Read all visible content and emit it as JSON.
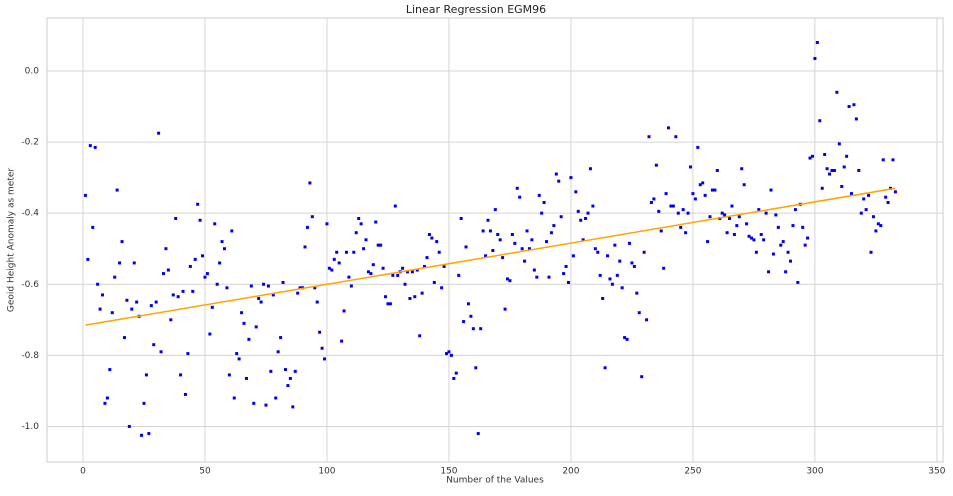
{
  "chart_data": {
    "type": "scatter",
    "title": "Linear Regression EGM96",
    "x_label": "Number of the Values",
    "y_label": "Geoid Height Anomaly as meter",
    "xlim": [
      -14.75,
      352.5
    ],
    "ylim": [
      -1.1,
      0.149
    ],
    "xticks": [
      0,
      50,
      100,
      150,
      200,
      250,
      300,
      350
    ],
    "yticks": [
      {
        "value": -1.0,
        "label": "-1.0"
      },
      -0.8,
      -0.6,
      -0.4,
      -0.2,
      {
        "value": 0.0,
        "label": "0.0"
      }
    ],
    "grid": true,
    "series": [
      {
        "type": "scatter",
        "color": "#0000ee",
        "x": [
          1,
          2,
          3,
          4,
          5,
          6,
          7,
          8,
          9,
          10,
          11,
          12,
          13,
          14,
          15,
          16,
          17,
          18,
          19,
          20,
          21,
          22,
          23,
          24,
          25,
          26,
          27,
          28,
          29,
          30,
          31,
          32,
          33,
          34,
          35,
          36,
          37,
          38,
          39,
          40,
          41,
          42,
          43,
          44,
          45,
          46,
          47,
          48,
          49,
          50,
          51,
          52,
          53,
          54,
          55,
          56,
          57,
          58,
          59,
          60,
          61,
          62,
          63,
          64,
          65,
          66,
          67,
          68,
          69,
          70,
          71,
          72,
          73,
          74,
          75,
          76,
          77,
          78,
          79,
          80,
          81,
          82,
          83,
          84,
          85,
          86,
          87,
          88,
          89,
          90,
          91,
          92,
          93,
          94,
          95,
          96,
          97,
          98,
          99,
          100,
          101,
          102,
          103,
          104,
          105,
          106,
          107,
          108,
          109,
          110,
          111,
          112,
          113,
          114,
          115,
          116,
          117,
          118,
          119,
          120,
          121,
          122,
          123,
          124,
          125,
          126,
          127,
          128,
          129,
          130,
          131,
          132,
          133,
          134,
          135,
          136,
          137,
          138,
          139,
          140,
          141,
          142,
          143,
          144,
          145,
          146,
          147,
          148,
          149,
          150,
          151,
          152,
          153,
          154,
          155,
          156,
          157,
          158,
          159,
          160,
          161,
          162,
          163,
          164,
          165,
          166,
          167,
          168,
          169,
          170,
          171,
          172,
          173,
          174,
          175,
          176,
          177,
          178,
          179,
          180,
          181,
          182,
          183,
          184,
          185,
          186,
          187,
          188,
          189,
          190,
          191,
          192,
          193,
          194,
          195,
          196,
          197,
          198,
          199,
          200,
          201,
          202,
          203,
          204,
          205,
          206,
          207,
          208,
          209,
          210,
          211,
          212,
          213,
          214,
          215,
          216,
          217,
          218,
          219,
          220,
          221,
          222,
          223,
          224,
          225,
          226,
          227,
          228,
          229,
          230,
          231,
          232,
          233,
          234,
          235,
          236,
          237,
          238,
          239,
          240,
          241,
          242,
          243,
          244,
          245,
          246,
          247,
          248,
          249,
          250,
          251,
          252,
          253,
          254,
          255,
          256,
          257,
          258,
          259,
          260,
          261,
          262,
          263,
          264,
          265,
          266,
          267,
          268,
          269,
          270,
          271,
          272,
          273,
          274,
          275,
          276,
          277,
          278,
          279,
          280,
          281,
          282,
          283,
          284,
          285,
          286,
          287,
          288,
          289,
          290,
          291,
          292,
          293,
          294,
          295,
          296,
          297,
          298,
          299,
          300,
          301,
          302,
          303,
          304,
          305,
          306,
          307,
          308,
          309,
          310,
          311,
          312,
          313,
          314,
          315,
          316,
          317,
          318,
          319,
          320,
          321,
          322,
          323,
          324,
          325,
          326,
          327,
          328,
          329,
          330,
          331,
          332,
          333
        ],
        "values": [
          -0.35,
          -0.53,
          -0.21,
          -0.44,
          -0.215,
          -0.6,
          -0.67,
          -0.63,
          -0.935,
          -0.92,
          -0.84,
          -0.68,
          -0.58,
          -0.335,
          -0.54,
          -0.48,
          -0.75,
          -0.645,
          -1.0,
          -0.67,
          -0.54,
          -0.65,
          -0.69,
          -1.025,
          -0.935,
          -0.855,
          -1.02,
          -0.66,
          -0.77,
          -0.65,
          -0.175,
          -0.79,
          -0.57,
          -0.5,
          -0.56,
          -0.7,
          -0.63,
          -0.415,
          -0.635,
          -0.855,
          -0.62,
          -0.91,
          -0.795,
          -0.55,
          -0.62,
          -0.53,
          -0.375,
          -0.42,
          -0.52,
          -0.58,
          -0.57,
          -0.74,
          -0.665,
          -0.43,
          -0.6,
          -0.54,
          -0.48,
          -0.5,
          -0.61,
          -0.855,
          -0.45,
          -0.92,
          -0.795,
          -0.81,
          -0.68,
          -0.71,
          -0.865,
          -0.755,
          -0.605,
          -0.935,
          -0.72,
          -0.64,
          -0.65,
          -0.6,
          -0.94,
          -0.605,
          -0.845,
          -0.63,
          -0.92,
          -0.79,
          -0.75,
          -0.595,
          -0.84,
          -0.885,
          -0.865,
          -0.945,
          -0.845,
          -0.625,
          -0.61,
          -0.61,
          -0.495,
          -0.44,
          -0.315,
          -0.41,
          -0.61,
          -0.65,
          -0.735,
          -0.78,
          -0.81,
          -0.43,
          -0.555,
          -0.56,
          -0.53,
          -0.51,
          -0.54,
          -0.76,
          -0.675,
          -0.51,
          -0.58,
          -0.605,
          -0.51,
          -0.455,
          -0.415,
          -0.43,
          -0.5,
          -0.475,
          -0.565,
          -0.57,
          -0.545,
          -0.425,
          -0.49,
          -0.49,
          -0.555,
          -0.635,
          -0.655,
          -0.655,
          -0.575,
          -0.38,
          -0.575,
          -0.565,
          -0.555,
          -0.6,
          -0.565,
          -0.64,
          -0.565,
          -0.635,
          -0.56,
          -0.745,
          -0.625,
          -0.55,
          -0.525,
          -0.46,
          -0.47,
          -0.595,
          -0.48,
          -0.51,
          -0.61,
          -0.55,
          -0.795,
          -0.79,
          -0.8,
          -0.865,
          -0.85,
          -0.575,
          -0.415,
          -0.705,
          -0.495,
          -0.655,
          -0.69,
          -0.725,
          -0.835,
          -1.02,
          -0.725,
          -0.45,
          -0.52,
          -0.42,
          -0.45,
          -0.505,
          -0.39,
          -0.46,
          -0.475,
          -0.525,
          -0.67,
          -0.585,
          -0.59,
          -0.46,
          -0.485,
          -0.33,
          -0.355,
          -0.5,
          -0.535,
          -0.45,
          -0.5,
          -0.475,
          -0.56,
          -0.58,
          -0.35,
          -0.4,
          -0.37,
          -0.48,
          -0.58,
          -0.455,
          -0.435,
          -0.29,
          -0.31,
          -0.41,
          -0.57,
          -0.55,
          -0.595,
          -0.3,
          -0.52,
          -0.34,
          -0.395,
          -0.42,
          -0.475,
          -0.415,
          -0.4,
          -0.275,
          -0.38,
          -0.5,
          -0.51,
          -0.575,
          -0.64,
          -0.835,
          -0.52,
          -0.585,
          -0.6,
          -0.49,
          -0.575,
          -0.535,
          -0.61,
          -0.75,
          -0.755,
          -0.485,
          -0.54,
          -0.55,
          -0.625,
          -0.68,
          -0.86,
          -0.51,
          -0.7,
          -0.185,
          -0.37,
          -0.36,
          -0.265,
          -0.395,
          -0.45,
          -0.555,
          -0.345,
          -0.16,
          -0.38,
          -0.38,
          -0.185,
          -0.4,
          -0.44,
          -0.39,
          -0.455,
          -0.4,
          -0.27,
          -0.345,
          -0.36,
          -0.215,
          -0.32,
          -0.315,
          -0.35,
          -0.48,
          -0.41,
          -0.335,
          -0.335,
          -0.28,
          -0.415,
          -0.4,
          -0.405,
          -0.455,
          -0.415,
          -0.38,
          -0.46,
          -0.435,
          -0.41,
          -0.275,
          -0.32,
          -0.43,
          -0.465,
          -0.47,
          -0.475,
          -0.51,
          -0.39,
          -0.46,
          -0.475,
          -0.4,
          -0.565,
          -0.335,
          -0.515,
          -0.405,
          -0.44,
          -0.49,
          -0.48,
          -0.565,
          -0.51,
          -0.535,
          -0.435,
          -0.39,
          -0.595,
          -0.375,
          -0.44,
          -0.49,
          -0.47,
          -0.245,
          -0.24,
          0.035,
          0.08,
          -0.14,
          -0.33,
          -0.235,
          -0.275,
          -0.29,
          -0.28,
          -0.28,
          -0.06,
          -0.205,
          -0.325,
          -0.27,
          -0.24,
          -0.1,
          -0.345,
          -0.095,
          -0.135,
          -0.28,
          -0.4,
          -0.36,
          -0.39,
          -0.35,
          -0.51,
          -0.41,
          -0.45,
          -0.43,
          -0.435,
          -0.25,
          -0.355,
          -0.37,
          -0.33,
          -0.25,
          -0.34
        ]
      },
      {
        "type": "line",
        "color": "#ffa500",
        "x": [
          1,
          333
        ],
        "values": [
          -0.715,
          -0.33
        ]
      }
    ]
  }
}
